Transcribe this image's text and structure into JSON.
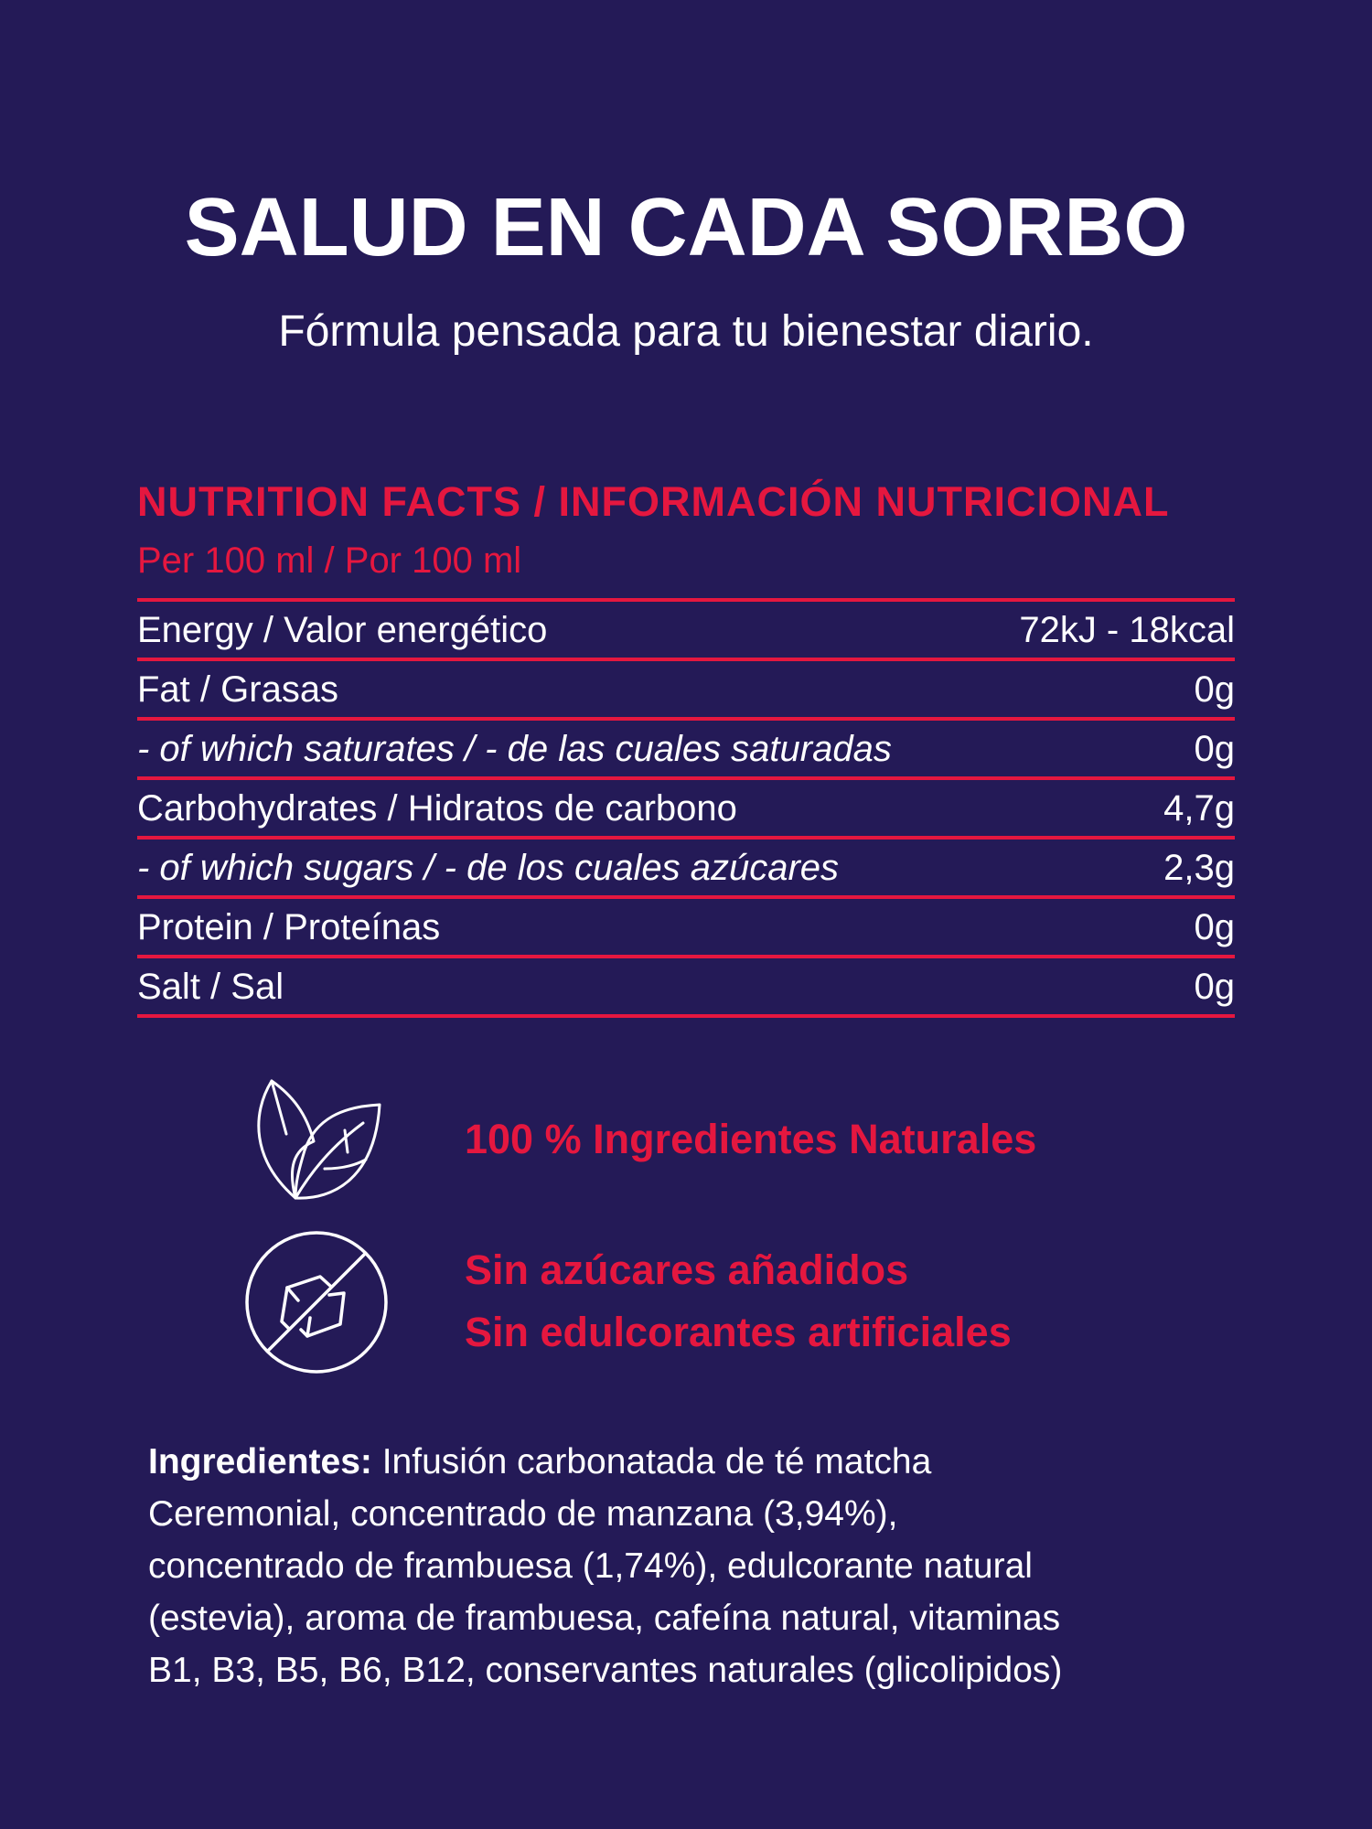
{
  "header": {
    "title": "SALUD EN CADA SORBO",
    "subtitle": "Fórmula pensada para tu bienestar diario."
  },
  "nutrition": {
    "heading": "NUTRITION FACTS / INFORMACIÓN NUTRICIONAL",
    "per": "Per 100 ml / Por 100 ml",
    "rows": [
      {
        "label": "Energy / Valor energético",
        "value": "72kJ - 18kcal",
        "italic": false
      },
      {
        "label": "Fat / Grasas",
        "value": "0g",
        "italic": false
      },
      {
        "label": "- of which saturates / - de las cuales saturadas",
        "value": "0g",
        "italic": true
      },
      {
        "label": "Carbohydrates / Hidratos de carbono",
        "value": "4,7g",
        "italic": false
      },
      {
        "label": "- of which sugars / - de los cuales azúcares",
        "value": "2,3g",
        "italic": true
      },
      {
        "label": "Protein / Proteínas",
        "value": "0g",
        "italic": false
      },
      {
        "label": "Salt / Sal",
        "value": "0g",
        "italic": false
      }
    ]
  },
  "claims": {
    "natural": {
      "icon": "leaves-icon",
      "text": "100 % Ingredientes Naturales"
    },
    "no_sugar": {
      "icon": "no-sugar-cube-icon",
      "line1": "Sin azúcares añadidos",
      "line2": "Sin edulcorantes artificiales"
    }
  },
  "ingredients": {
    "label": "Ingredientes:",
    "lines": [
      " Infusión carbonatada de té matcha",
      "Ceremonial, concentrado de manzana (3,94%),",
      "concentrado de frambuesa (1,74%), edulcorante natural",
      "(estevia), aroma de frambuesa, cafeína natural, vitaminas",
      "B1, B3, B5, B6, B12, conservantes naturales (glicolipidos)"
    ]
  },
  "colors": {
    "background": "#241a57",
    "accent": "#e5173f",
    "text": "#ffffff"
  }
}
